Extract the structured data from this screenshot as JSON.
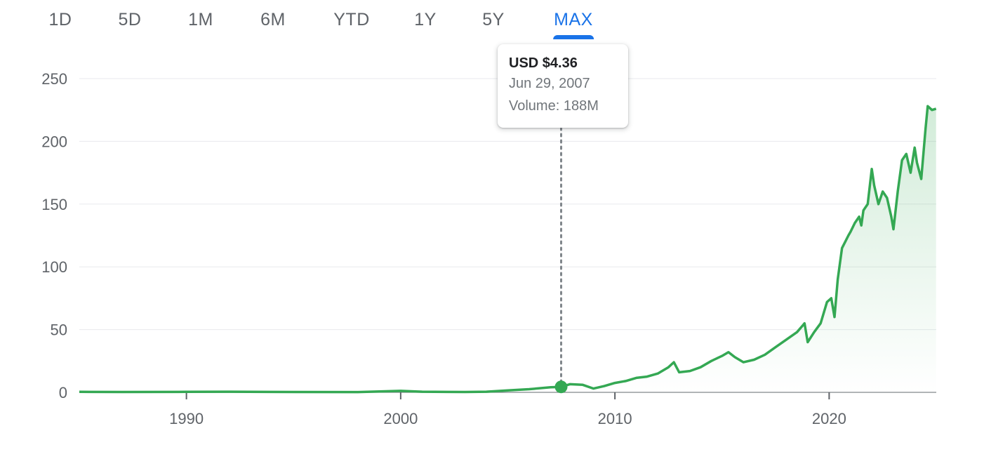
{
  "range_tabs": [
    {
      "label": "1D"
    },
    {
      "label": "5D"
    },
    {
      "label": "1M"
    },
    {
      "label": "6M"
    },
    {
      "label": "YTD"
    },
    {
      "label": "1Y"
    },
    {
      "label": "5Y"
    },
    {
      "label": "MAX",
      "active": true
    }
  ],
  "tooltip": {
    "price": "USD $4.36",
    "date": "Jun 29, 2007",
    "volume": "Volume: 188M"
  },
  "colors": {
    "line": "#34a853",
    "active_tab": "#1a73e8",
    "grid": "#e8eaed"
  },
  "chart_data": {
    "type": "area",
    "y_ticks": [
      0,
      50,
      100,
      150,
      200,
      250
    ],
    "x_ticks": [
      1990,
      2000,
      2010,
      2020
    ],
    "ylim": [
      0,
      250
    ],
    "xlim": [
      1985,
      2025
    ],
    "grid": "horizontal",
    "highlight": {
      "x": 2007.49,
      "y": 4.36
    },
    "series": [
      {
        "x": [
          1985,
          1987,
          1990,
          1992,
          1995,
          1998,
          2000,
          2001,
          2003,
          2004,
          2005,
          2006,
          2007,
          2007.49,
          2007.9,
          2008.5,
          2009,
          2009.5,
          2010,
          2010.5,
          2011,
          2011.5,
          2012,
          2012.5,
          2012.75,
          2013,
          2013.5,
          2014,
          2014.5,
          2015,
          2015.3,
          2015.6,
          2016,
          2016.5,
          2017,
          2017.5,
          2018,
          2018.5,
          2018.85,
          2019,
          2019.3,
          2019.6,
          2019.9,
          2020.1,
          2020.25,
          2020.4,
          2020.6,
          2020.75,
          2020.9,
          2021,
          2021.2,
          2021.4,
          2021.5,
          2021.6,
          2021.8,
          2021.99,
          2022.1,
          2022.3,
          2022.5,
          2022.7,
          2022.9,
          2023,
          2023.2,
          2023.4,
          2023.6,
          2023.8,
          2023.99,
          2024.1,
          2024.3,
          2024.5,
          2024.6,
          2024.8,
          2024.99
        ],
        "values": [
          0.4,
          0.3,
          0.4,
          0.5,
          0.3,
          0.2,
          1.2,
          0.5,
          0.3,
          0.5,
          1.5,
          2.5,
          4.0,
          4.36,
          6.5,
          6.0,
          3.0,
          5.0,
          7.5,
          9.0,
          11.5,
          12.5,
          15.0,
          20.0,
          24.0,
          16.0,
          17.0,
          20.0,
          25.0,
          29.0,
          32.0,
          28.0,
          24.0,
          26.0,
          30.0,
          36.0,
          42.0,
          48.0,
          55.0,
          40.0,
          48.0,
          55.0,
          72.0,
          75.0,
          60.0,
          90.0,
          115.0,
          120.0,
          125.0,
          128.0,
          135.0,
          140.0,
          133.0,
          145.0,
          150.0,
          178.0,
          165.0,
          150.0,
          160.0,
          155.0,
          140.0,
          130.0,
          160.0,
          185.0,
          190.0,
          175.0,
          195.0,
          183.0,
          170.0,
          210.0,
          228.0,
          225.0,
          226.0
        ]
      }
    ]
  }
}
